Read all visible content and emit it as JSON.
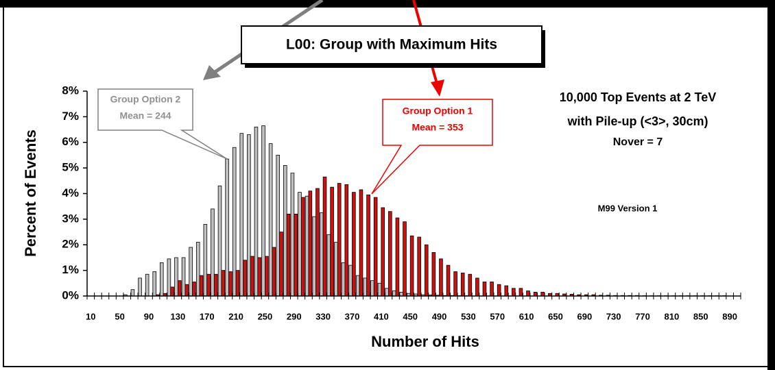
{
  "chart_data": {
    "type": "bar",
    "title": "L00: Group with Maximum Hits",
    "x_label": "Number of Hits",
    "y_label": "Percent of Events",
    "annotations": [
      "10,000 Top Events at 2 TeV",
      "with Pile-up (<3>, 30cm)",
      "Nover = 7",
      "M99 Version 1"
    ],
    "categories": [
      10,
      null,
      null,
      null,
      50,
      null,
      null,
      null,
      90,
      null,
      null,
      null,
      130,
      null,
      null,
      null,
      170,
      null,
      null,
      null,
      210,
      null,
      null,
      null,
      250,
      null,
      null,
      null,
      290,
      null,
      null,
      null,
      330,
      null,
      null,
      null,
      370,
      null,
      null,
      null,
      410,
      null,
      null,
      null,
      450,
      null,
      null,
      null,
      490,
      null,
      null,
      null,
      530,
      null,
      null,
      null,
      570,
      null,
      null,
      null,
      610,
      null,
      null,
      null,
      650,
      null,
      null,
      null,
      690,
      null,
      null,
      null,
      730,
      null,
      null,
      null,
      770,
      null,
      null,
      null,
      810,
      null,
      null,
      null,
      850,
      null,
      null,
      null,
      890,
      null
    ],
    "series": [
      {
        "name": "Group Option 2",
        "mean_label": "Mean = 244",
        "color": "#c0c0c0",
        "values": [
          0,
          0,
          0,
          0,
          0,
          0.05,
          0.25,
          0.7,
          0.85,
          0.95,
          1.3,
          1.45,
          1.5,
          1.5,
          1.9,
          2.1,
          2.8,
          3.4,
          4.3,
          5.35,
          5.8,
          6.35,
          6.3,
          6.6,
          6.65,
          5.95,
          5.5,
          5.1,
          4.8,
          4.05,
          3.9,
          3.1,
          3.25,
          2.4,
          2.1,
          1.3,
          1.2,
          0.8,
          0.7,
          0.6,
          0.5,
          0.3,
          0.2,
          0.15,
          0.1,
          0.08,
          0.05,
          0.04,
          0.03,
          0.02,
          0.02,
          0.01,
          0.01,
          0,
          0,
          0,
          0,
          0,
          0,
          0,
          0,
          0,
          0,
          0,
          0,
          0,
          0,
          0,
          0,
          0,
          0,
          0,
          0,
          0,
          0,
          0,
          0,
          0,
          0,
          0,
          0,
          0,
          0,
          0,
          0,
          0,
          0,
          0,
          0,
          0
        ]
      },
      {
        "name": "Group Option 1",
        "mean_label": "Mean = 353",
        "color": "#cc1111",
        "values": [
          0,
          0,
          0,
          0,
          0,
          0,
          0,
          0,
          0,
          0.05,
          0.1,
          0.35,
          0.6,
          0.45,
          0.55,
          0.8,
          0.85,
          0.85,
          1.0,
          0.95,
          1.0,
          1.4,
          1.55,
          1.5,
          1.55,
          1.9,
          2.5,
          3.2,
          3.2,
          3.85,
          4.1,
          4.2,
          4.65,
          4.25,
          4.4,
          4.35,
          4.05,
          4.15,
          3.95,
          3.85,
          3.45,
          3.3,
          3.05,
          2.9,
          2.35,
          2.3,
          2.0,
          1.7,
          1.45,
          1.2,
          0.95,
          0.9,
          0.85,
          0.7,
          0.55,
          0.55,
          0.45,
          0.4,
          0.3,
          0.3,
          0.2,
          0.15,
          0.15,
          0.1,
          0.1,
          0.08,
          0.07,
          0.05,
          0.05,
          0.05,
          0.03,
          0.03,
          0.02,
          0.02,
          0.02,
          0.02,
          0.01,
          0.01,
          0.01,
          0.01,
          0.01,
          0.01,
          0.01,
          0.01,
          0.01,
          0.01,
          0.01,
          0.01,
          0,
          0
        ]
      }
    ],
    "ylim": [
      0,
      8
    ],
    "yticks": [
      {
        "value": 0,
        "label": "0%"
      },
      {
        "value": 1,
        "label": "1%"
      },
      {
        "value": 2,
        "label": "2%"
      },
      {
        "value": 3,
        "label": "3%"
      },
      {
        "value": 4,
        "label": "4%"
      },
      {
        "value": 5,
        "label": "5%"
      },
      {
        "value": 6,
        "label": "6%"
      },
      {
        "value": 7,
        "label": "7%"
      },
      {
        "value": 8,
        "label": "8%"
      }
    ],
    "grid": false
  }
}
